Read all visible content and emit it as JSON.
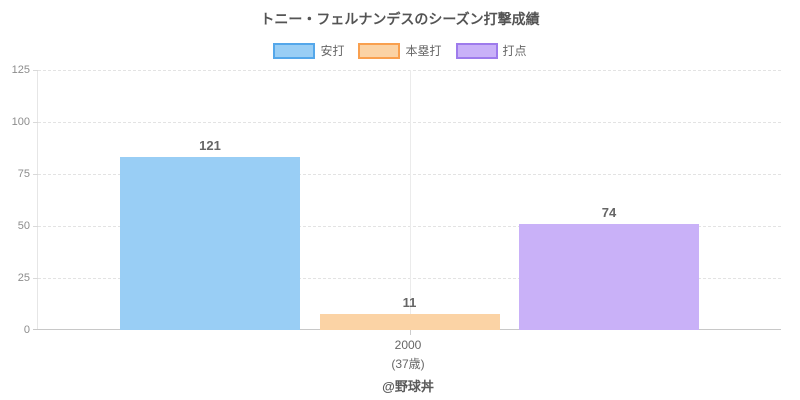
{
  "title": "トニー・フェルナンデスのシーズン打撃成績",
  "footer": "@野球丼",
  "xaxis": {
    "category": "2000",
    "sub_label": "(37歳)"
  },
  "chart_data": {
    "type": "bar",
    "title": "トニー・フェルナンデスのシーズン打撃成績",
    "categories": [
      "2000 (37歳)"
    ],
    "series": [
      {
        "key": "hits",
        "name": "安打",
        "values": [
          121
        ],
        "fill": "#99CEF5",
        "border": "#54A7EA"
      },
      {
        "key": "home-runs",
        "name": "本塁打",
        "values": [
          11
        ],
        "fill": "#FBD3A5",
        "border": "#F9A04F"
      },
      {
        "key": "rbi",
        "name": "打点",
        "values": [
          74
        ],
        "fill": "#C9B1F8",
        "border": "#9E7BEC"
      }
    ],
    "xlabel": "",
    "ylabel": "",
    "ylim": [
      0,
      125
    ],
    "yticks": [
      0,
      25,
      50,
      75,
      100,
      125
    ],
    "grid": true,
    "legend_position": "top",
    "bar_render_scale_max": 182,
    "render_note": "Bars in the source image are drawn shorter than the labeled values relative to the visible 0-125 axis; heights match a scale max of ~182."
  }
}
